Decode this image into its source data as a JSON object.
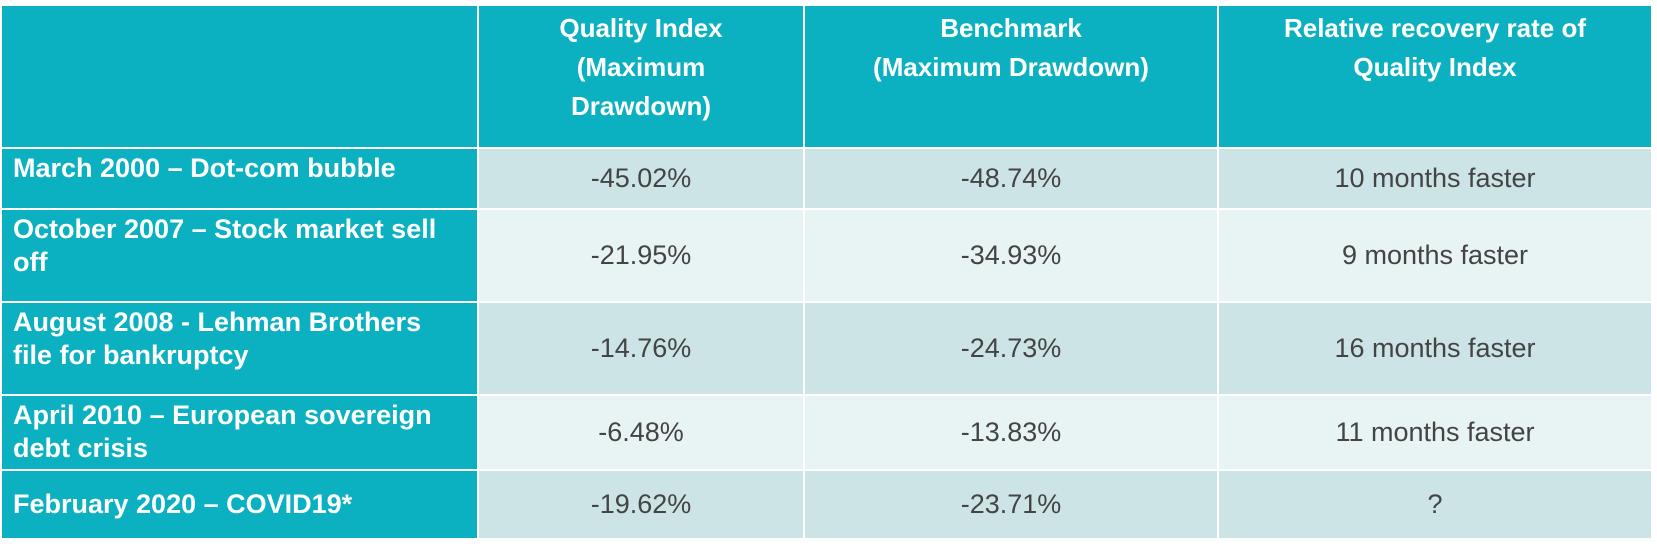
{
  "table": {
    "columns": [
      "",
      "Quality Index (Maximum Drawdown)",
      "Benchmark (Maximum Drawdown)",
      "Relative recovery rate of Quality Index"
    ],
    "header_lines": {
      "quality": [
        "Quality Index",
        "(Maximum",
        "Drawdown)"
      ],
      "benchmark": [
        "Benchmark",
        "(Maximum Drawdown)"
      ],
      "recovery": [
        "Relative recovery rate of",
        "Quality Index"
      ]
    },
    "rows": [
      {
        "event": "March 2000 – Dot-com bubble",
        "quality": "-45.02%",
        "benchmark": "-48.74%",
        "recovery": "10 months faster"
      },
      {
        "event": "October 2007 – Stock market sell off",
        "quality": "-21.95%",
        "benchmark": "-34.93%",
        "recovery": "9 months faster"
      },
      {
        "event": "August 2008 - Lehman Brothers file for bankruptcy",
        "quality": "-14.76%",
        "benchmark": "-24.73%",
        "recovery": "16 months faster"
      },
      {
        "event": "April 2010 – European sovereign debt crisis",
        "quality": "-6.48%",
        "benchmark": "-13.83%",
        "recovery": "11 months faster"
      },
      {
        "event": "February 2020 – COVID19*",
        "quality": "-19.62%",
        "benchmark": "-23.71%",
        "recovery": "?"
      }
    ]
  },
  "colors": {
    "header_teal": "#0bb1c0",
    "band_dark": "#cde4e7",
    "band_light": "#e8f3f4",
    "value_text": "#444444"
  }
}
